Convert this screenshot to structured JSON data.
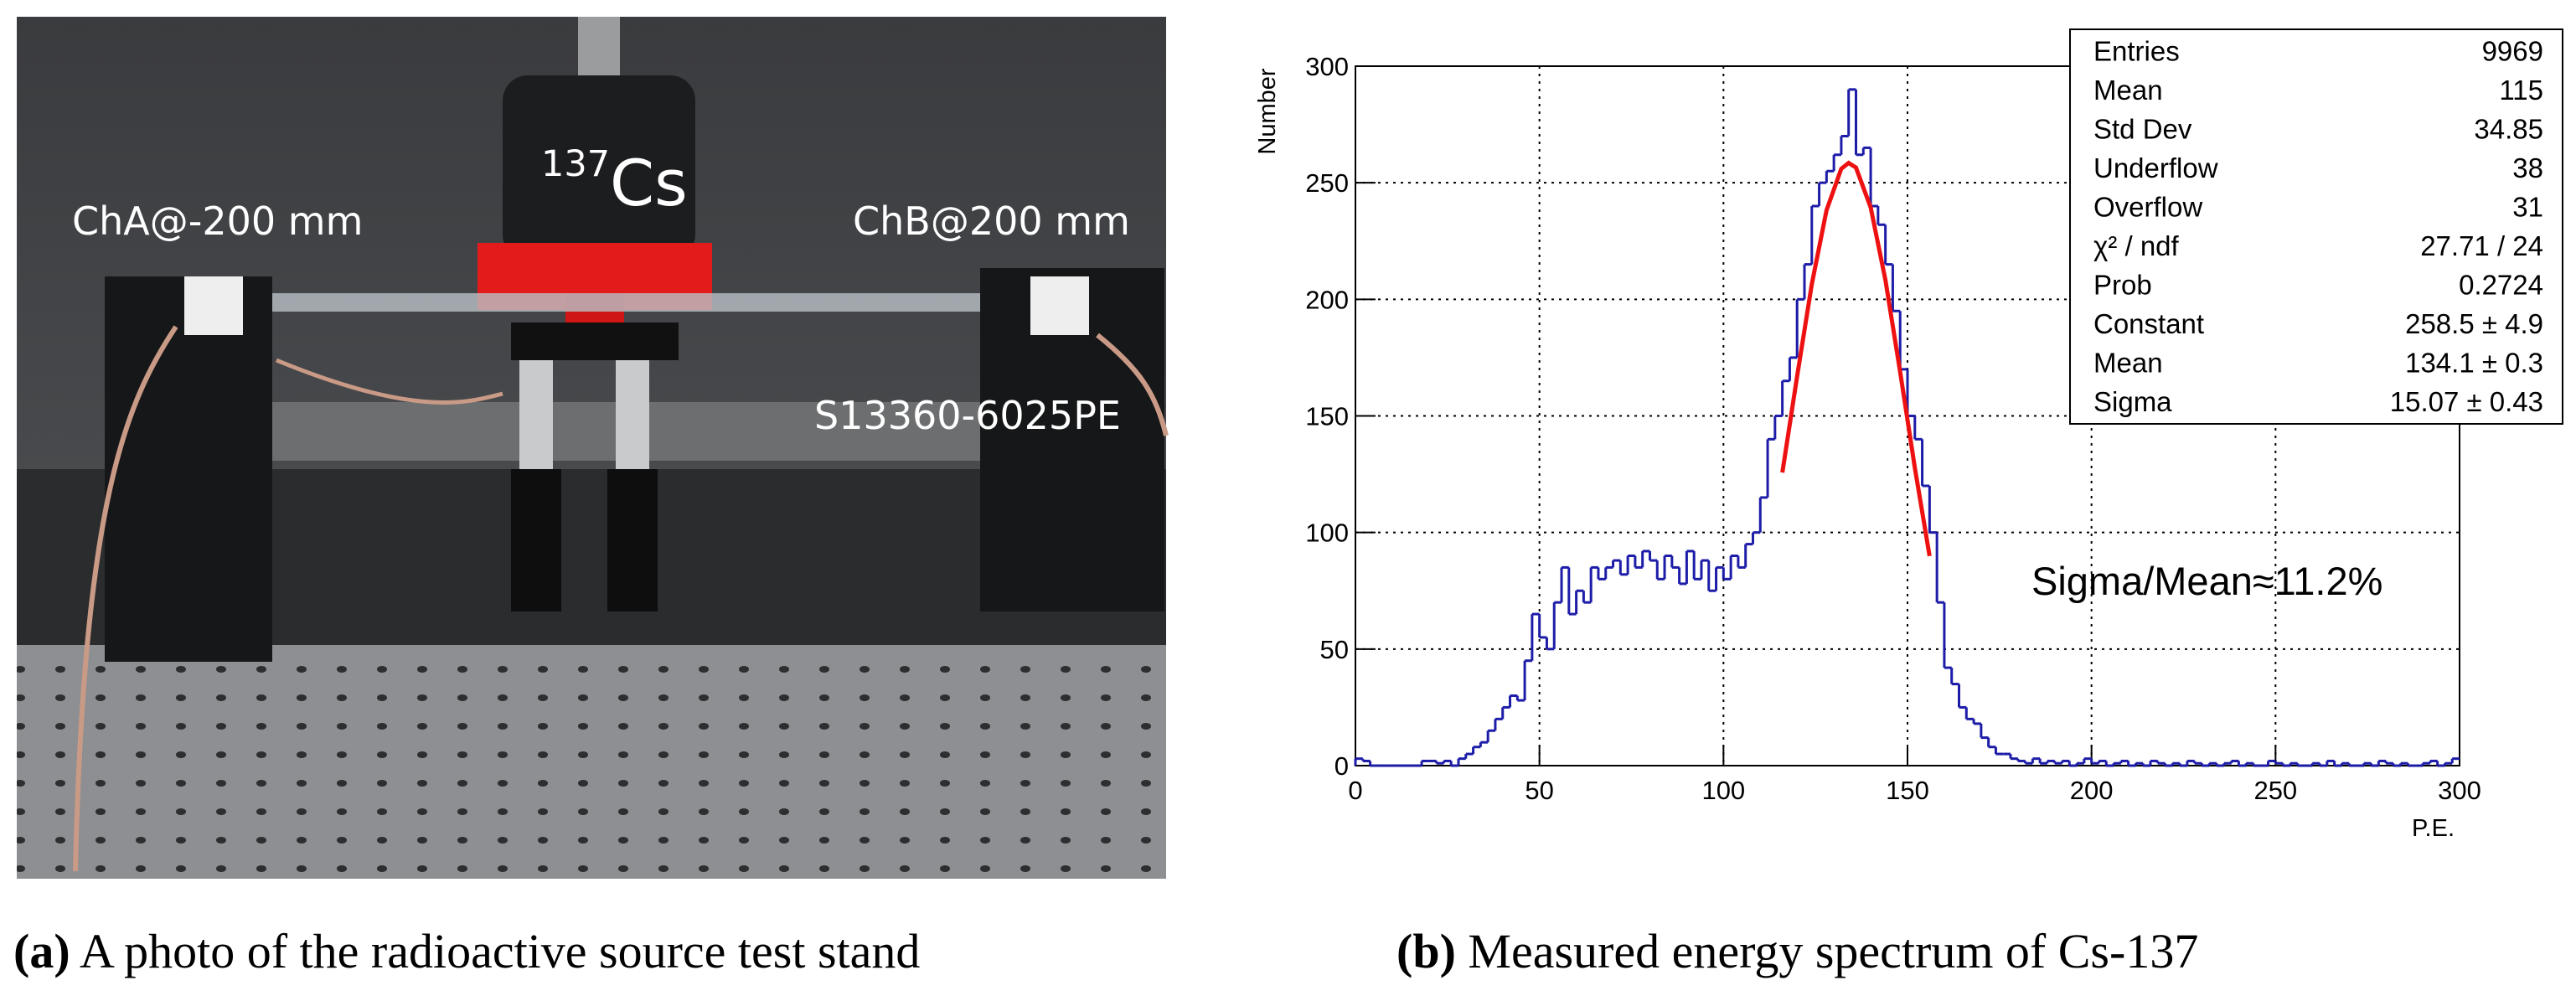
{
  "photo": {
    "source_sup": "137",
    "source": "Cs",
    "left_label": "ChA@-200 mm",
    "right_label": "ChB@200 mm",
    "sensor_label": "S13360-6025PE"
  },
  "captions": [
    {
      "label": "(a)",
      "text": " A photo of the radioactive source test stand"
    },
    {
      "label": "(b)",
      "text": " Measured energy spectrum of Cs-137"
    }
  ],
  "chart_data": {
    "type": "histogram",
    "ylabel": "Number",
    "xlabel": "P.E.",
    "color": "#1c1ca8",
    "bins": [
      0,
      2,
      4,
      6,
      8,
      10,
      12,
      14,
      16,
      18,
      20,
      22,
      24,
      26,
      28,
      30,
      32,
      34,
      36,
      38,
      40,
      42,
      44,
      46,
      48,
      50,
      52,
      54,
      56,
      58,
      60,
      62,
      64,
      66,
      68,
      70,
      72,
      74,
      76,
      78,
      80,
      82,
      84,
      86,
      88,
      90,
      92,
      94,
      96,
      98,
      100,
      102,
      104,
      106,
      108,
      110,
      112,
      114,
      116,
      118,
      120,
      122,
      124,
      126,
      128,
      130,
      132,
      134,
      136,
      138,
      140,
      142,
      144,
      146,
      148,
      150,
      152,
      154,
      156,
      158,
      160,
      162,
      164,
      166,
      168,
      170,
      172,
      174,
      176,
      178,
      180,
      182,
      184,
      186,
      188,
      190,
      192,
      194,
      196,
      198,
      200,
      202,
      204,
      206,
      208,
      210,
      212,
      214,
      216,
      218,
      220,
      222,
      224,
      226,
      228,
      230,
      232,
      234,
      236,
      238,
      240,
      242,
      244,
      246,
      248,
      250,
      252,
      254,
      256,
      258,
      260,
      262,
      264,
      266,
      268,
      270,
      272,
      274,
      276,
      278,
      280,
      282,
      284,
      286,
      288,
      290,
      292,
      294,
      296,
      298,
      300
    ],
    "values": [
      3,
      2,
      0,
      0,
      0,
      0,
      0,
      0,
      0,
      2,
      2,
      1,
      2,
      0,
      3,
      5,
      8,
      10,
      15,
      20,
      25,
      30,
      28,
      45,
      65,
      55,
      50,
      70,
      85,
      65,
      75,
      70,
      85,
      80,
      85,
      88,
      82,
      90,
      85,
      92,
      88,
      80,
      90,
      85,
      78,
      92,
      80,
      88,
      75,
      85,
      80,
      90,
      85,
      95,
      100,
      115,
      140,
      150,
      165,
      175,
      200,
      215,
      240,
      250,
      255,
      262,
      270,
      290,
      262,
      265,
      240,
      232,
      215,
      195,
      170,
      150,
      140,
      120,
      100,
      70,
      42,
      35,
      25,
      20,
      18,
      12,
      8,
      5,
      5,
      3,
      2,
      1,
      3,
      1,
      2,
      1,
      2,
      0,
      1,
      3,
      1,
      2,
      0,
      1,
      2,
      0,
      1,
      0,
      2,
      1,
      0,
      1,
      0,
      2,
      1,
      0,
      1,
      0,
      1,
      2,
      0,
      1,
      0,
      0,
      2,
      1,
      0,
      1,
      0,
      0,
      1,
      0,
      2,
      0,
      1,
      0,
      0,
      1,
      0,
      2,
      1,
      0,
      1,
      0,
      0,
      1,
      2,
      0,
      1,
      3
    ],
    "fit": {
      "color": "#ee1111",
      "x": [
        116,
        120,
        124,
        128,
        132,
        134,
        136,
        140,
        144,
        148,
        152,
        156
      ],
      "values": [
        125.7,
        166.9,
        206.5,
        238.2,
        256.0,
        258.5,
        256.5,
        239.4,
        208.3,
        168.9,
        127.7,
        89.9
      ]
    },
    "xlim": [
      0,
      300
    ],
    "ylim": [
      0,
      300
    ],
    "xticks": [
      0,
      50,
      100,
      150,
      200,
      250,
      300
    ],
    "yticks": [
      0,
      50,
      100,
      150,
      200,
      250,
      300
    ],
    "grid": true,
    "stats": [
      {
        "label": "Entries",
        "value": "9969"
      },
      {
        "label": "Mean",
        "value": "115"
      },
      {
        "label": "Std Dev",
        "value": "34.85"
      },
      {
        "label": "Underflow",
        "value": "38"
      },
      {
        "label": "Overflow",
        "value": "31"
      },
      {
        "label": "χ² / ndf",
        "value": "27.71 / 24"
      },
      {
        "label": "Prob",
        "value": "0.2724"
      },
      {
        "label": "Constant",
        "value": "258.5 ± 4.9"
      },
      {
        "label": "Mean",
        "value": "134.1 ± 0.3"
      },
      {
        "label": "Sigma",
        "value": "15.07 ± 0.43"
      }
    ],
    "annotation": "Sigma/Mean≈11.2%"
  }
}
